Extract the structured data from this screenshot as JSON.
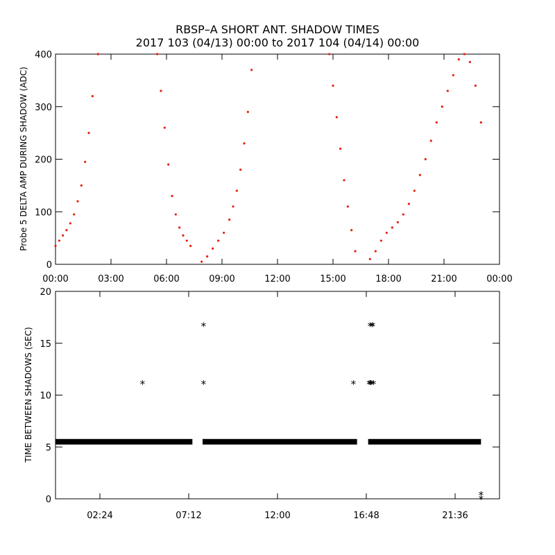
{
  "title_line1": "RBSP–A SHORT ANT. SHADOW TIMES",
  "title_line2": "2017 103 (04/13) 00:00 to 2017 104 (04/14) 00:00",
  "colors": {
    "amp_series": "#e8200a",
    "interval_series": "#000000",
    "axes": "#000000",
    "background": "#ffffff"
  },
  "chart_data": [
    {
      "type": "scatter",
      "ylabel": "Probe 5 DELTA AMP DURING SHADOW (ADC)",
      "x_unit": "hours since 2017-04-13 00:00",
      "xlim": [
        0,
        24
      ],
      "ylim": [
        0,
        400
      ],
      "x_tick_labels": [
        "00:00",
        "03:00",
        "06:00",
        "09:00",
        "12:00",
        "15:00",
        "18:00",
        "21:00",
        "00:00"
      ],
      "y_tick_labels": [
        "0",
        "100",
        "200",
        "300",
        "400"
      ],
      "series": [
        {
          "color": "#e8200a",
          "x": [
            0.0,
            0.2,
            0.4,
            0.6,
            0.8,
            1.0,
            1.2,
            1.4,
            1.6,
            1.8,
            2.0,
            2.3,
            5.5,
            5.7,
            5.9,
            6.1,
            6.3,
            6.5,
            6.7,
            6.9,
            7.1,
            7.3,
            7.9,
            8.2,
            8.5,
            8.8,
            9.1,
            9.4,
            9.6,
            9.8,
            10.0,
            10.2,
            10.4,
            10.6,
            14.8,
            15.0,
            15.2,
            15.4,
            15.6,
            15.8,
            16.0,
            16.2,
            17.0,
            17.3,
            17.6,
            17.9,
            18.2,
            18.5,
            18.8,
            19.1,
            19.4,
            19.7,
            20.0,
            20.3,
            20.6,
            20.9,
            21.2,
            21.5,
            21.8,
            22.1,
            22.4,
            22.7,
            23.0
          ],
          "y": [
            35,
            45,
            55,
            65,
            78,
            95,
            120,
            150,
            195,
            250,
            320,
            400,
            400,
            330,
            260,
            190,
            130,
            95,
            70,
            55,
            45,
            35,
            5,
            15,
            30,
            45,
            60,
            85,
            110,
            140,
            180,
            230,
            290,
            370,
            400,
            340,
            280,
            220,
            160,
            110,
            65,
            25,
            10,
            25,
            45,
            60,
            70,
            80,
            95,
            115,
            140,
            170,
            200,
            235,
            270,
            300,
            330,
            360,
            390,
            400,
            385,
            340,
            270
          ]
        }
      ]
    },
    {
      "type": "scatter",
      "ylabel": "TIME BETWEEN SHADOWS (SEC)",
      "x_unit": "hours since 2017-04-13 00:00",
      "xlim": [
        0,
        24
      ],
      "ylim": [
        0,
        20
      ],
      "x_tick_labels": [
        "02:24",
        "07:12",
        "12:00",
        "16:48",
        "21:36"
      ],
      "x_tick_values": [
        2.4,
        7.2,
        12.0,
        16.8,
        21.6
      ],
      "y_tick_labels": [
        "0",
        "5",
        "10",
        "15",
        "20"
      ],
      "baseline_value": 5.5,
      "baseline_segments": [
        [
          0.0,
          7.4
        ],
        [
          7.95,
          16.3
        ],
        [
          16.9,
          23.0
        ]
      ],
      "series": [
        {
          "color": "#000000",
          "x": [
            4.7,
            8.0,
            8.0,
            16.1,
            16.95,
            17.0,
            17.05,
            17.1,
            17.2,
            17.0,
            17.1,
            17.15,
            23.0,
            23.0
          ],
          "y": [
            11.1,
            16.7,
            11.1,
            11.1,
            11.1,
            11.1,
            11.1,
            11.1,
            11.1,
            16.7,
            16.7,
            16.7,
            0.4,
            0.0
          ]
        }
      ]
    }
  ]
}
